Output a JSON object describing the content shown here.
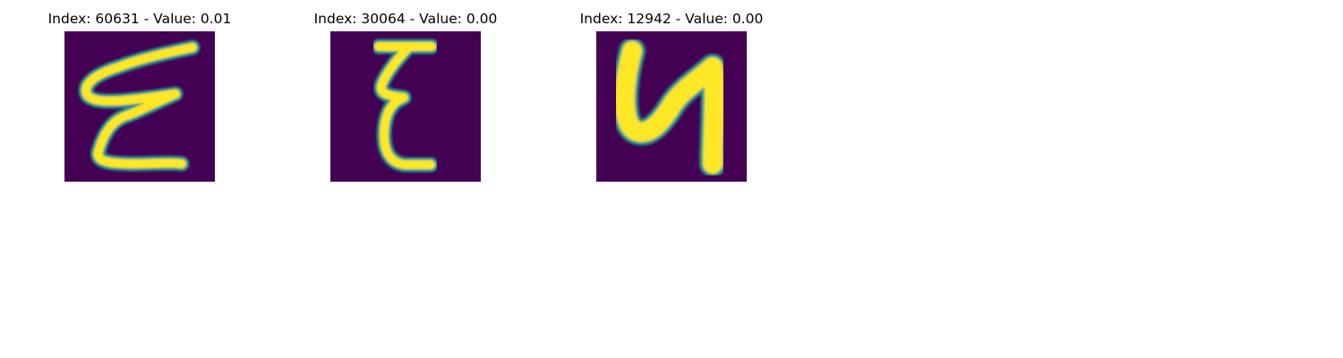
{
  "colors": {
    "background": "#440154",
    "mid": "#21918c",
    "stroke": "#fde725"
  },
  "panels": [
    {
      "index": 60631,
      "value": "0.01",
      "title": "Index: 60631 - Value: 0.01"
    },
    {
      "index": 30064,
      "value": "0.00",
      "title": "Index: 30064 - Value: 0.00"
    },
    {
      "index": 12942,
      "value": "0.00",
      "title": "Index: 12942 - Value: 0.00"
    }
  ]
}
